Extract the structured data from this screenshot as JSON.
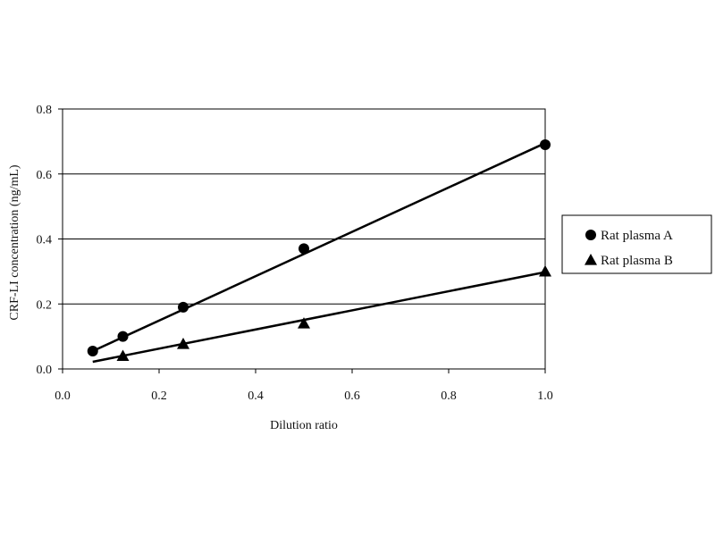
{
  "chart_data": {
    "type": "scatter",
    "title": "",
    "xlabel": "Dilution ratio",
    "ylabel": "CRF-LI concentration (ng/mL)",
    "xlim": [
      0.0,
      1.0
    ],
    "ylim": [
      0.0,
      0.8
    ],
    "xticks": [
      "0.0",
      "0.2",
      "0.4",
      "0.6",
      "0.8",
      "1.0"
    ],
    "yticks": [
      "0.0",
      "0.2",
      "0.4",
      "0.6",
      "0.8"
    ],
    "grid": "horizontal",
    "legend_position": "right",
    "series": [
      {
        "name": "Rat plasma A",
        "marker": "circle",
        "color": "#000000",
        "x": [
          0.0625,
          0.125,
          0.25,
          0.5,
          1.0
        ],
        "y": [
          0.055,
          0.1,
          0.19,
          0.37,
          0.69
        ],
        "trendline": [
          [
            0.0625,
            0.055
          ],
          [
            1.0,
            0.695
          ]
        ]
      },
      {
        "name": "Rat plasma B",
        "marker": "triangle",
        "color": "#000000",
        "x": [
          0.125,
          0.25,
          0.5,
          1.0
        ],
        "y": [
          0.04,
          0.077,
          0.14,
          0.3
        ],
        "trendline": [
          [
            0.0625,
            0.022
          ],
          [
            1.0,
            0.298
          ]
        ]
      }
    ]
  }
}
